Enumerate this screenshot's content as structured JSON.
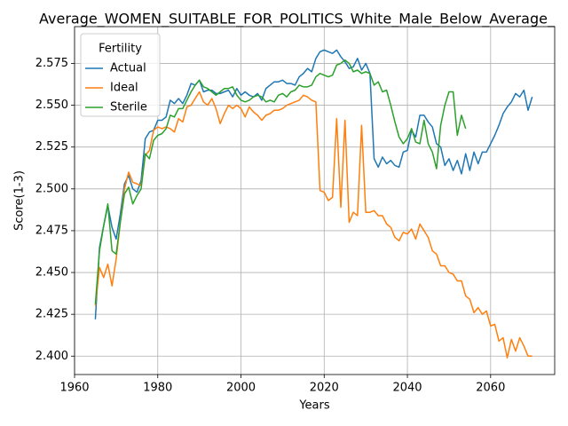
{
  "chart_data": {
    "type": "line",
    "title": "Average_WOMEN_SUITABLE_FOR_POLITICS_White_Male_Below_Average_",
    "xlabel": "Years",
    "ylabel": "Score(1-3)",
    "legend_title": "Fertility",
    "legend": "upper left",
    "grid": true,
    "xlim": [
      1960,
      2075.4
    ],
    "ylim": [
      2.389,
      2.597
    ],
    "xticks": [
      1960,
      1980,
      2000,
      2020,
      2040,
      2060
    ],
    "yticks": [
      {
        "value": 2.4,
        "label": "2.400"
      },
      {
        "value": 2.425,
        "label": "2.425"
      },
      {
        "value": 2.45,
        "label": "2.450"
      },
      {
        "value": 2.475,
        "label": "2.475"
      },
      {
        "value": 2.5,
        "label": "2.500"
      },
      {
        "value": 2.525,
        "label": "2.525"
      },
      {
        "value": 2.55,
        "label": "2.550"
      },
      {
        "value": 2.575,
        "label": "2.575"
      }
    ],
    "x": [
      1965,
      1966,
      1967,
      1968,
      1969,
      1970,
      1971,
      1972,
      1973,
      1974,
      1975,
      1976,
      1977,
      1978,
      1979,
      1980,
      1981,
      1982,
      1983,
      1984,
      1985,
      1986,
      1987,
      1988,
      1989,
      1990,
      1991,
      1992,
      1993,
      1994,
      1995,
      1996,
      1997,
      1998,
      1999,
      2000,
      2001,
      2002,
      2003,
      2004,
      2005,
      2006,
      2007,
      2008,
      2009,
      2010,
      2011,
      2012,
      2013,
      2014,
      2015,
      2016,
      2017,
      2018,
      2019,
      2020,
      2021,
      2022,
      2023,
      2024,
      2025,
      2026,
      2027,
      2028,
      2029,
      2030,
      2031,
      2032,
      2033,
      2034,
      2035,
      2036,
      2037,
      2038,
      2039,
      2040,
      2041,
      2042,
      2043,
      2044,
      2045,
      2046,
      2047,
      2048,
      2049,
      2050,
      2051,
      2052,
      2053,
      2054,
      2055,
      2056,
      2057,
      2058,
      2059,
      2060,
      2061,
      2062,
      2063,
      2064,
      2065,
      2066,
      2067,
      2068,
      2069,
      2070
    ],
    "series": [
      {
        "name": "Actual",
        "color": "#1f77b4",
        "values": [
          2.422,
          2.465,
          2.478,
          2.49,
          2.477,
          2.47,
          2.485,
          2.503,
          2.508,
          2.5,
          2.498,
          2.505,
          2.53,
          2.534,
          2.535,
          2.541,
          2.541,
          2.543,
          2.553,
          2.551,
          2.554,
          2.551,
          2.556,
          2.563,
          2.562,
          2.565,
          2.558,
          2.559,
          2.559,
          2.557,
          2.557,
          2.558,
          2.559,
          2.555,
          2.56,
          2.556,
          2.558,
          2.556,
          2.555,
          2.557,
          2.553,
          2.56,
          2.562,
          2.564,
          2.564,
          2.565,
          2.563,
          2.563,
          2.562,
          2.567,
          2.569,
          2.572,
          2.57,
          2.578,
          2.582,
          2.583,
          2.582,
          2.581,
          2.583,
          2.579,
          2.576,
          2.572,
          2.573,
          2.578,
          2.571,
          2.575,
          2.569,
          2.518,
          2.513,
          2.519,
          2.515,
          2.517,
          2.514,
          2.513,
          2.522,
          2.523,
          2.535,
          2.531,
          2.544,
          2.544,
          2.54,
          2.537,
          2.527,
          2.525,
          2.514,
          2.518,
          2.511,
          2.517,
          2.509,
          2.521,
          2.511,
          2.522,
          2.515,
          2.522,
          2.522,
          2.527,
          2.532,
          2.538,
          2.545,
          2.549,
          2.552,
          2.557,
          2.555,
          2.559,
          2.547,
          2.555
        ]
      },
      {
        "name": "Ideal",
        "color": "#ff7f0e",
        "values": [
          2.43,
          2.453,
          2.447,
          2.455,
          2.442,
          2.458,
          2.48,
          2.5,
          2.51,
          2.504,
          2.503,
          2.502,
          2.52,
          2.523,
          2.535,
          2.537,
          2.536,
          2.537,
          2.536,
          2.534,
          2.542,
          2.54,
          2.549,
          2.55,
          2.554,
          2.558,
          2.552,
          2.55,
          2.554,
          2.548,
          2.539,
          2.545,
          2.55,
          2.548,
          2.55,
          2.548,
          2.543,
          2.549,
          2.546,
          2.544,
          2.541,
          2.544,
          2.545,
          2.547,
          2.547,
          2.548,
          2.55,
          2.551,
          2.552,
          2.553,
          2.556,
          2.555,
          2.553,
          2.552,
          2.499,
          2.498,
          2.493,
          2.495,
          2.542,
          2.489,
          2.541,
          2.48,
          2.486,
          2.484,
          2.538,
          2.486,
          2.486,
          2.487,
          2.484,
          2.484,
          2.479,
          2.477,
          2.471,
          2.469,
          2.474,
          2.473,
          2.476,
          2.47,
          2.479,
          2.475,
          2.471,
          2.463,
          2.461,
          2.454,
          2.454,
          2.45,
          2.449,
          2.445,
          2.445,
          2.436,
          2.434,
          2.426,
          2.429,
          2.425,
          2.427,
          2.418,
          2.419,
          2.409,
          2.411,
          2.399,
          2.41,
          2.403,
          2.411,
          2.406,
          2.4,
          2.4
        ]
      },
      {
        "name": "Sterile",
        "color": "#2ca02c",
        "values": [
          2.431,
          2.463,
          2.478,
          2.491,
          2.463,
          2.461,
          2.48,
          2.497,
          2.501,
          2.491,
          2.496,
          2.5,
          2.521,
          2.518,
          2.529,
          2.532,
          2.533,
          2.536,
          2.544,
          2.543,
          2.548,
          2.548,
          2.553,
          2.558,
          2.562,
          2.565,
          2.561,
          2.56,
          2.558,
          2.556,
          2.558,
          2.56,
          2.56,
          2.561,
          2.556,
          2.553,
          2.552,
          2.553,
          2.555,
          2.556,
          2.555,
          2.552,
          2.553,
          2.552,
          2.556,
          2.557,
          2.555,
          2.558,
          2.559,
          2.562,
          2.561,
          2.561,
          2.562,
          2.567,
          2.569,
          2.568,
          2.567,
          2.568,
          2.574,
          2.575,
          2.577,
          2.575,
          2.57,
          2.571,
          2.569,
          2.57,
          2.569,
          2.562,
          2.564,
          2.558,
          2.559,
          2.55,
          2.54,
          2.531,
          2.527,
          2.53,
          2.536,
          2.528,
          2.527,
          2.541,
          2.527,
          2.522,
          2.512,
          2.538,
          2.55,
          2.558,
          2.558,
          2.532,
          2.544,
          2.536,
          null,
          null,
          null,
          null,
          null,
          null,
          null,
          null,
          null,
          null,
          null,
          null,
          null,
          null,
          null,
          null
        ]
      }
    ]
  }
}
